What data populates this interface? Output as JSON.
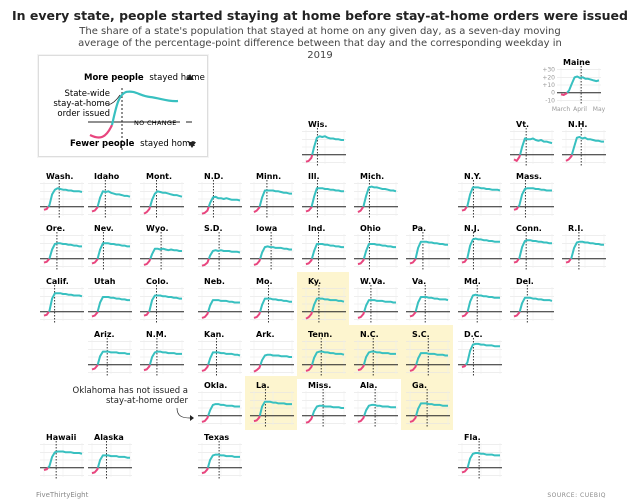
{
  "title": "In every state, people started staying at home before stay-at-home orders were issued",
  "subtitle": "The share of a state's population that stayed at home on any given day, as a seven-day moving average of the percentage-point difference between that day and the corresponding weekday in 2019",
  "legend": {
    "more_label_bold": "More people",
    "more_label_rest": "stayed home",
    "fewer_label_bold": "Fewer people",
    "fewer_label_rest": "stayed home",
    "order_label": "State-wide stay-at-home order issued",
    "no_change_label": "NO CHANGE"
  },
  "annotation": "Oklahoma has not issued a stay-at-home order",
  "footer": {
    "brand": "FiveThirtyEight",
    "source": "SOURCE: CUEBIQ"
  },
  "colors": {
    "positive": "#38c0c0",
    "negative": "#e8457e",
    "highlight": "#fdf5cf",
    "order_line": "#222222"
  },
  "chart_data": {
    "type": "line",
    "description_units": "percentage points vs. same weekday in 2019",
    "x_ticks": [
      "March",
      "April",
      "May"
    ],
    "y_ticks": [
      "+30",
      "+20",
      "+10",
      "0",
      "-10"
    ],
    "ylim": [
      -12,
      32
    ],
    "highlighted_states": [
      "Ky.",
      "Tenn.",
      "N.C.",
      "S.C.",
      "La.",
      "Ga."
    ],
    "states": [
      {
        "name": "Maine",
        "order": 0.53,
        "values": [
          -2,
          -3,
          -1,
          3,
          12,
          20,
          21,
          19,
          20,
          18,
          18,
          17,
          16,
          15,
          16
        ]
      },
      {
        "name": "Wis.",
        "order": 0.3,
        "values": [
          -9,
          -8,
          -4,
          10,
          22,
          24,
          23,
          24,
          22,
          21,
          21,
          20,
          20,
          19,
          19
        ]
      },
      {
        "name": "Vt.",
        "order": 0.32,
        "values": [
          -6,
          -8,
          -3,
          10,
          21,
          20,
          20,
          21,
          19,
          18,
          19,
          17,
          17,
          16,
          15
        ]
      },
      {
        "name": "N.H.",
        "order": 0.4,
        "values": [
          -8,
          -6,
          -2,
          10,
          22,
          23,
          21,
          22,
          20,
          20,
          19,
          18,
          18,
          17,
          17
        ]
      },
      {
        "name": "Wash.",
        "order": 0.4,
        "values": [
          -4,
          -3,
          2,
          16,
          22,
          24,
          23,
          22,
          22,
          21,
          21,
          20,
          20,
          20,
          19
        ]
      },
      {
        "name": "Idaho",
        "order": 0.35,
        "values": [
          -6,
          -5,
          -1,
          12,
          20,
          19,
          20,
          18,
          17,
          16,
          16,
          15,
          14,
          14,
          13
        ]
      },
      {
        "name": "Mont.",
        "order": 0.33,
        "values": [
          -9,
          -7,
          -3,
          9,
          17,
          20,
          19,
          18,
          18,
          17,
          16,
          15,
          15,
          14,
          13
        ]
      },
      {
        "name": "N.D.",
        "order": 0.3,
        "values": [
          -9,
          -8,
          -5,
          5,
          12,
          13,
          11,
          11,
          10,
          11,
          10,
          9,
          9,
          9,
          8
        ]
      },
      {
        "name": "Minn.",
        "order": 0.34,
        "values": [
          -7,
          -5,
          -1,
          12,
          21,
          21,
          21,
          21,
          20,
          20,
          19,
          18,
          18,
          17,
          17
        ]
      },
      {
        "name": "Ill.",
        "order": 0.3,
        "values": [
          -6,
          -5,
          -1,
          13,
          24,
          24,
          24,
          23,
          23,
          22,
          22,
          21,
          21,
          20,
          20
        ]
      },
      {
        "name": "Mich.",
        "order": 0.3,
        "values": [
          -7,
          -5,
          0,
          14,
          25,
          26,
          25,
          25,
          24,
          23,
          23,
          22,
          21,
          21,
          20
        ]
      },
      {
        "name": "N.Y.",
        "order": 0.3,
        "values": [
          -5,
          -4,
          1,
          16,
          25,
          25,
          25,
          24,
          24,
          23,
          23,
          22,
          22,
          22,
          21
        ]
      },
      {
        "name": "Mass.",
        "order": 0.3,
        "values": [
          -4,
          -3,
          2,
          16,
          23,
          24,
          24,
          24,
          23,
          23,
          22,
          22,
          21,
          21,
          21
        ]
      },
      {
        "name": "Ore.",
        "order": 0.34,
        "values": [
          -5,
          -4,
          0,
          12,
          19,
          20,
          20,
          19,
          19,
          18,
          18,
          17,
          17,
          16,
          16
        ]
      },
      {
        "name": "Nev.",
        "order": 0.3,
        "values": [
          -6,
          -5,
          -1,
          12,
          20,
          20,
          20,
          19,
          19,
          18,
          18,
          17,
          17,
          16,
          16
        ]
      },
      {
        "name": "Wyo.",
        "order": 0.45,
        "values": [
          -8,
          -7,
          -3,
          6,
          13,
          13,
          12,
          13,
          12,
          11,
          12,
          11,
          11,
          10,
          10
        ]
      },
      {
        "name": "S.D.",
        "order": 0.45,
        "values": [
          -9,
          -8,
          -5,
          4,
          10,
          11,
          10,
          11,
          10,
          10,
          10,
          9,
          9,
          9,
          8
        ]
      },
      {
        "name": "Iowa",
        "order": 0.45,
        "values": [
          -8,
          -7,
          -3,
          8,
          15,
          16,
          15,
          15,
          14,
          14,
          14,
          13,
          13,
          12,
          12
        ]
      },
      {
        "name": "Ind.",
        "order": 0.33,
        "values": [
          -7,
          -6,
          -2,
          10,
          19,
          19,
          19,
          18,
          18,
          17,
          17,
          16,
          16,
          15,
          15
        ]
      },
      {
        "name": "Ohio",
        "order": 0.3,
        "values": [
          -7,
          -6,
          -2,
          10,
          19,
          19,
          19,
          18,
          18,
          17,
          17,
          16,
          16,
          15,
          15
        ]
      },
      {
        "name": "Pa.",
        "order": 0.34,
        "values": [
          -6,
          -5,
          -1,
          14,
          22,
          22,
          22,
          21,
          21,
          20,
          20,
          19,
          19,
          18,
          18
        ]
      },
      {
        "name": "N.J.",
        "order": 0.3,
        "values": [
          -5,
          -4,
          1,
          17,
          25,
          26,
          25,
          25,
          24,
          24,
          23,
          23,
          22,
          22,
          22
        ]
      },
      {
        "name": "Conn.",
        "order": 0.32,
        "values": [
          -5,
          -4,
          1,
          15,
          23,
          24,
          24,
          23,
          23,
          22,
          22,
          21,
          21,
          20,
          20
        ]
      },
      {
        "name": "R.I.",
        "order": 0.34,
        "values": [
          -5,
          -4,
          1,
          14,
          21,
          22,
          22,
          21,
          21,
          20,
          20,
          19,
          19,
          18,
          18
        ]
      },
      {
        "name": "Calif.",
        "order": 0.28,
        "values": [
          -5,
          -4,
          1,
          17,
          24,
          24,
          24,
          23,
          23,
          22,
          22,
          21,
          21,
          21,
          20
        ]
      },
      {
        "name": "Utah",
        "order": 0.0,
        "values": [
          -6,
          -5,
          -1,
          12,
          19,
          19,
          19,
          18,
          18,
          17,
          17,
          16,
          16,
          15,
          15
        ]
      },
      {
        "name": "Colo.",
        "order": 0.33,
        "values": [
          -5,
          -4,
          1,
          15,
          21,
          21,
          21,
          20,
          20,
          19,
          19,
          18,
          18,
          17,
          17
        ]
      },
      {
        "name": "Neb.",
        "order": 0.0,
        "values": [
          -8,
          -7,
          -3,
          8,
          15,
          15,
          15,
          14,
          14,
          14,
          13,
          13,
          12,
          12,
          12
        ]
      },
      {
        "name": "Mo.",
        "order": 0.38,
        "values": [
          -8,
          -7,
          -3,
          9,
          17,
          17,
          17,
          16,
          16,
          15,
          15,
          14,
          14,
          13,
          13
        ]
      },
      {
        "name": "Ky.",
        "order": 0.34,
        "values": [
          -9,
          -7,
          -3,
          9,
          17,
          17,
          17,
          16,
          16,
          15,
          15,
          15,
          14,
          14,
          13
        ]
      },
      {
        "name": "W.Va.",
        "order": 0.34,
        "values": [
          -8,
          -7,
          -3,
          8,
          15,
          15,
          15,
          14,
          14,
          14,
          13,
          13,
          13,
          12,
          12
        ]
      },
      {
        "name": "Va.",
        "order": 0.4,
        "values": [
          -6,
          -5,
          -1,
          12,
          19,
          19,
          19,
          18,
          18,
          17,
          17,
          16,
          16,
          16,
          15
        ]
      },
      {
        "name": "Md.",
        "order": 0.4,
        "values": [
          -6,
          -5,
          -1,
          13,
          21,
          22,
          21,
          21,
          20,
          20,
          19,
          19,
          18,
          18,
          18
        ]
      },
      {
        "name": "Del.",
        "order": 0.35,
        "values": [
          -6,
          -5,
          -1,
          11,
          18,
          18,
          18,
          17,
          17,
          16,
          16,
          15,
          15,
          15,
          14
        ]
      },
      {
        "name": "Ariz.",
        "order": 0.4,
        "values": [
          -6,
          -5,
          -1,
          11,
          17,
          17,
          17,
          16,
          16,
          16,
          15,
          15,
          15,
          14,
          14
        ]
      },
      {
        "name": "N.M.",
        "order": 0.34,
        "values": [
          -7,
          -6,
          -2,
          10,
          16,
          17,
          17,
          16,
          16,
          15,
          15,
          15,
          14,
          14,
          14
        ]
      },
      {
        "name": "Kan.",
        "order": 0.38,
        "values": [
          -8,
          -7,
          -3,
          8,
          16,
          16,
          16,
          15,
          15,
          14,
          14,
          14,
          13,
          13,
          12
        ]
      },
      {
        "name": "Ark.",
        "order": 0.0,
        "values": [
          -9,
          -7,
          -4,
          6,
          12,
          13,
          13,
          12,
          12,
          12,
          11,
          11,
          11,
          10,
          10
        ]
      },
      {
        "name": "Tenn.",
        "order": 0.4,
        "values": [
          -8,
          -7,
          -3,
          9,
          16,
          17,
          17,
          16,
          16,
          15,
          15,
          14,
          14,
          14,
          13
        ]
      },
      {
        "name": "N.C.",
        "order": 0.4,
        "values": [
          -7,
          -6,
          -2,
          10,
          16,
          17,
          17,
          16,
          16,
          15,
          15,
          15,
          14,
          14,
          14
        ]
      },
      {
        "name": "S.C.",
        "order": 0.48,
        "values": [
          -8,
          -7,
          -3,
          8,
          15,
          15,
          15,
          14,
          14,
          14,
          13,
          13,
          13,
          12,
          12
        ]
      },
      {
        "name": "D.C.",
        "order": 0.3,
        "values": [
          -3,
          -2,
          3,
          18,
          26,
          27,
          27,
          26,
          26,
          25,
          25,
          25,
          24,
          24,
          24
        ]
      },
      {
        "name": "Okla.",
        "order": 0.0,
        "values": [
          -8,
          -7,
          -3,
          7,
          14,
          15,
          15,
          14,
          14,
          13,
          13,
          13,
          12,
          12,
          12
        ]
      },
      {
        "name": "La.",
        "order": 0.3,
        "values": [
          -7,
          -6,
          -2,
          12,
          18,
          18,
          18,
          17,
          17,
          16,
          16,
          16,
          15,
          15,
          15
        ]
      },
      {
        "name": "Miss.",
        "order": 0.45,
        "values": [
          -9,
          -8,
          -4,
          6,
          12,
          13,
          13,
          12,
          12,
          12,
          11,
          11,
          11,
          10,
          10
        ]
      },
      {
        "name": "Ala.",
        "order": 0.45,
        "values": [
          -8,
          -7,
          -3,
          7,
          13,
          14,
          14,
          13,
          13,
          12,
          12,
          12,
          11,
          11,
          11
        ]
      },
      {
        "name": "Ga.",
        "order": 0.45,
        "values": [
          -8,
          -7,
          -3,
          9,
          16,
          16,
          16,
          15,
          15,
          14,
          14,
          14,
          13,
          13,
          13
        ]
      },
      {
        "name": "Hawaii",
        "order": 0.32,
        "values": [
          -3,
          -2,
          2,
          14,
          20,
          21,
          21,
          21,
          20,
          20,
          20,
          19,
          19,
          19,
          18
        ]
      },
      {
        "name": "Alaska",
        "order": 0.38,
        "values": [
          -7,
          -6,
          -2,
          10,
          16,
          16,
          16,
          15,
          15,
          15,
          14,
          14,
          14,
          13,
          13
        ]
      },
      {
        "name": "Texas",
        "order": 0.45,
        "values": [
          -7,
          -6,
          -2,
          10,
          16,
          17,
          17,
          16,
          16,
          15,
          15,
          15,
          14,
          14,
          14
        ]
      },
      {
        "name": "Fla.",
        "order": 0.45,
        "values": [
          -6,
          -5,
          -1,
          12,
          18,
          19,
          19,
          18,
          18,
          17,
          17,
          17,
          16,
          16,
          16
        ]
      }
    ]
  }
}
